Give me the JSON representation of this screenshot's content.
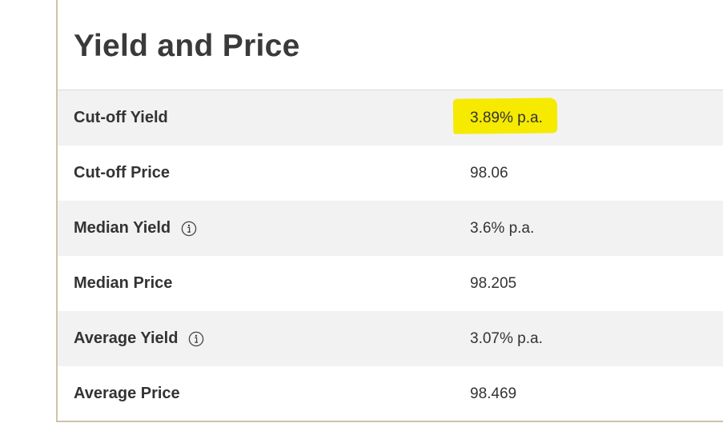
{
  "section": {
    "title": "Yield and Price"
  },
  "rows": [
    {
      "label": "Cut-off Yield",
      "value": "3.89% p.a.",
      "highlighted": true,
      "info": false
    },
    {
      "label": "Cut-off Price",
      "value": "98.06",
      "highlighted": false,
      "info": false
    },
    {
      "label": "Median Yield",
      "value": "3.6% p.a.",
      "highlighted": false,
      "info": true
    },
    {
      "label": "Median Price",
      "value": "98.205",
      "highlighted": false,
      "info": false
    },
    {
      "label": "Average Yield",
      "value": "3.07% p.a.",
      "highlighted": false,
      "info": true
    },
    {
      "label": "Average Price",
      "value": "98.469",
      "highlighted": false,
      "info": false
    }
  ],
  "colors": {
    "highlight": "#f5ea00",
    "row_shade": "#f2f2f2",
    "text": "#333333",
    "border": "#cfc3a8"
  },
  "icons": {
    "info": "info-circle-icon"
  }
}
